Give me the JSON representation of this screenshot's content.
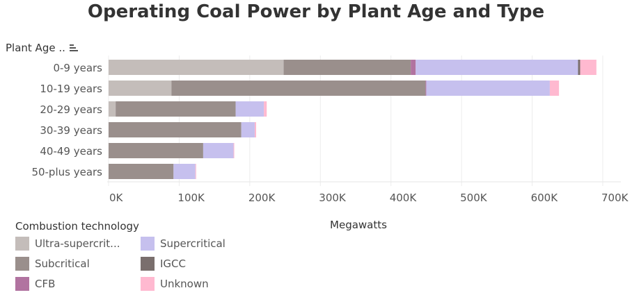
{
  "chart_data": {
    "type": "bar",
    "orientation": "horizontal",
    "stacked": true,
    "title": "Operating Coal Power by Plant Age and Type",
    "ylabel": "Plant Age ..",
    "xlabel": "Megawatts",
    "categories": [
      "0-9 years",
      "10-19 years",
      "20-29 years",
      "30-39 years",
      "40-49 years",
      "50-plus years"
    ],
    "xlim": [
      0,
      720000
    ],
    "xticks": [
      0,
      100000,
      200000,
      300000,
      400000,
      500000,
      600000,
      700000
    ],
    "xtick_labels": [
      "0K",
      "100K",
      "200K",
      "300K",
      "400K",
      "500K",
      "600K",
      "700K"
    ],
    "grid": true,
    "legend_title": "Combustion technology",
    "legend_position": "bottom-left",
    "series": [
      {
        "name": "Ultra-supercritical",
        "label": "Ultra-supercrit...",
        "color": "#c4bdba",
        "values": [
          248000,
          89000,
          10000,
          0,
          0,
          0
        ]
      },
      {
        "name": "Subcritical",
        "label": "Subcritical",
        "color": "#9a8f8c",
        "values": [
          180000,
          360000,
          170000,
          188000,
          134000,
          92000
        ]
      },
      {
        "name": "CFB",
        "label": "CFB",
        "color": "#b173a0",
        "values": [
          7000,
          1000,
          0,
          0,
          0,
          0
        ]
      },
      {
        "name": "Supercritical",
        "label": "Supercritical",
        "color": "#c6c0ee",
        "values": [
          230000,
          175000,
          40000,
          19000,
          43000,
          31000
        ]
      },
      {
        "name": "IGCC",
        "label": "IGCC",
        "color": "#7a6f6d",
        "values": [
          3000,
          0,
          0,
          0,
          0,
          0
        ]
      },
      {
        "name": "Unknown",
        "label": "Unknown",
        "color": "#ffb9d0",
        "values": [
          23000,
          13000,
          4000,
          2000,
          1000,
          1000
        ]
      }
    ],
    "legend_order": [
      "Ultra-supercritical",
      "Supercritical",
      "Subcritical",
      "IGCC",
      "CFB",
      "Unknown"
    ]
  }
}
